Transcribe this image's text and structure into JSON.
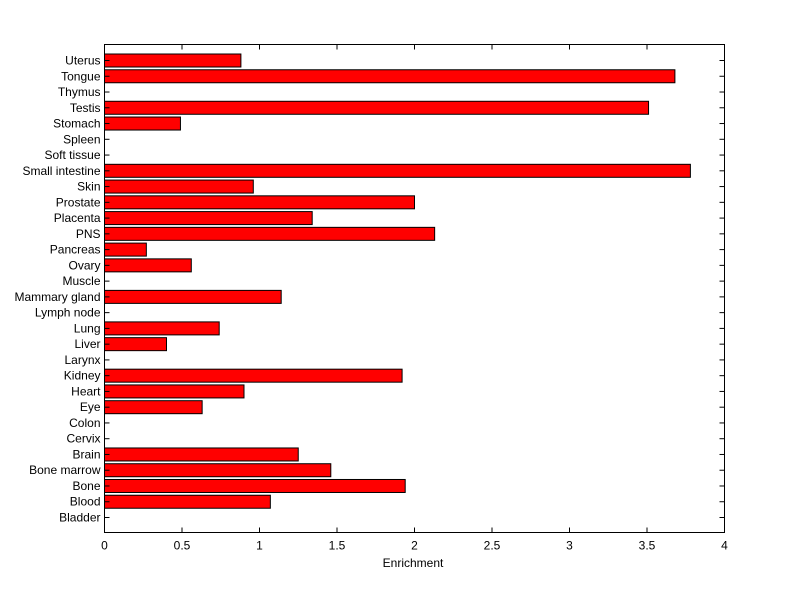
{
  "chart_data": {
    "type": "bar",
    "orientation": "horizontal",
    "title": "",
    "xlabel": "Enrichment",
    "ylabel": "",
    "xlim": [
      0,
      4
    ],
    "xticks": [
      "0",
      "0.5",
      "1",
      "1.5",
      "2",
      "2.5",
      "3",
      "3.5",
      "4"
    ],
    "grid": false,
    "bar_color": "#ff0000",
    "edge_color": "#000000",
    "categories": [
      "Uterus",
      "Tongue",
      "Thymus",
      "Testis",
      "Stomach",
      "Spleen",
      "Soft tissue",
      "Small intestine",
      "Skin",
      "Prostate",
      "Placenta",
      "PNS",
      "Pancreas",
      "Ovary",
      "Muscle",
      "Mammary gland",
      "Lymph node",
      "Lung",
      "Liver",
      "Larynx",
      "Kidney",
      "Heart",
      "Eye",
      "Colon",
      "Cervix",
      "Brain",
      "Bone marrow",
      "Bone",
      "Blood",
      "Bladder"
    ],
    "values": [
      0.88,
      3.68,
      0,
      3.51,
      0.49,
      0,
      0,
      3.78,
      0.96,
      2.0,
      1.34,
      2.13,
      0.27,
      0.56,
      0,
      1.14,
      0,
      0.74,
      0.4,
      0,
      1.92,
      0.9,
      0.63,
      0,
      0,
      1.25,
      1.46,
      1.94,
      1.07,
      0
    ]
  }
}
